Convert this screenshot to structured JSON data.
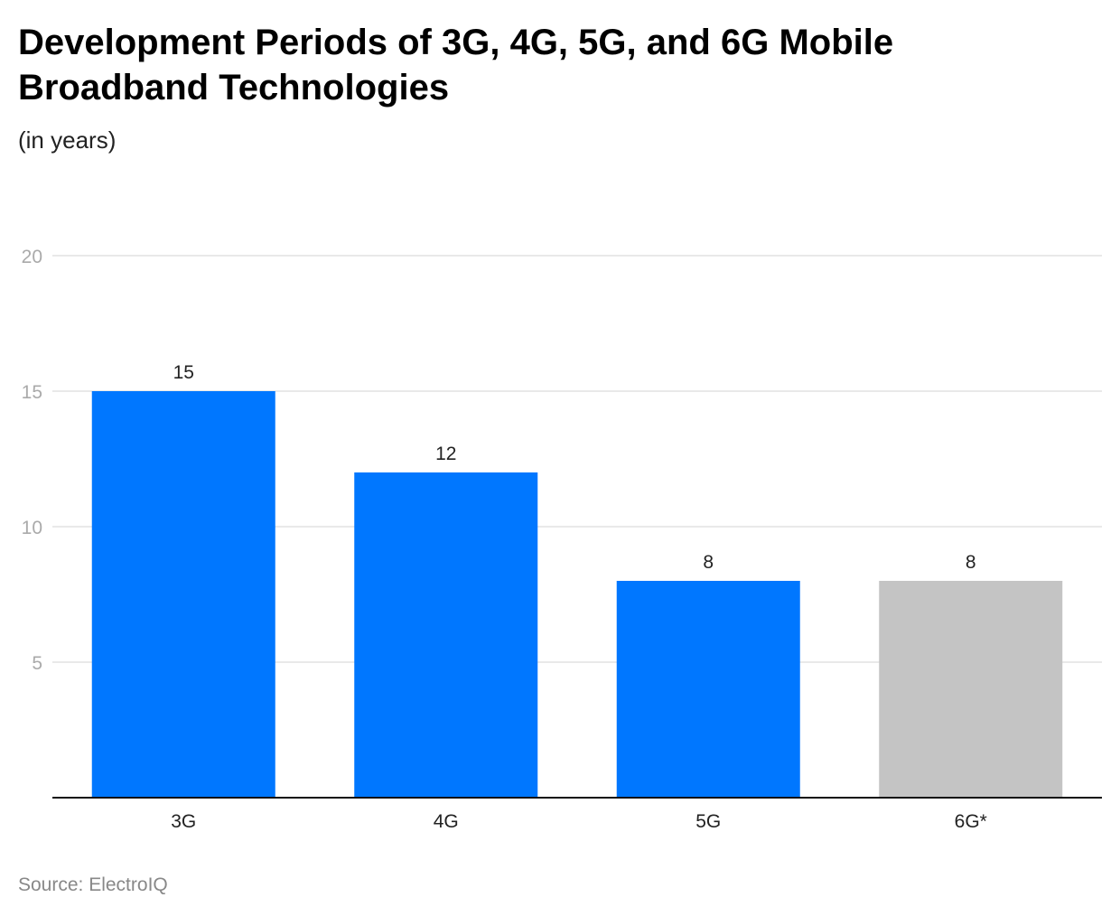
{
  "chart_data": {
    "type": "bar",
    "title": "Development Periods of 3G, 4G, 5G, and 6G Mobile Broadband Technologies",
    "subtitle": "(in years)",
    "categories": [
      "3G",
      "4G",
      "5G",
      "6G*"
    ],
    "values": [
      15,
      12,
      8,
      8
    ],
    "colors": [
      "#0077ff",
      "#0077ff",
      "#0077ff",
      "#c4c4c4"
    ],
    "ylim": [
      0,
      20
    ],
    "yticks": [
      5,
      10,
      15,
      20
    ],
    "grid": true,
    "source": "Source: ElectroIQ"
  }
}
